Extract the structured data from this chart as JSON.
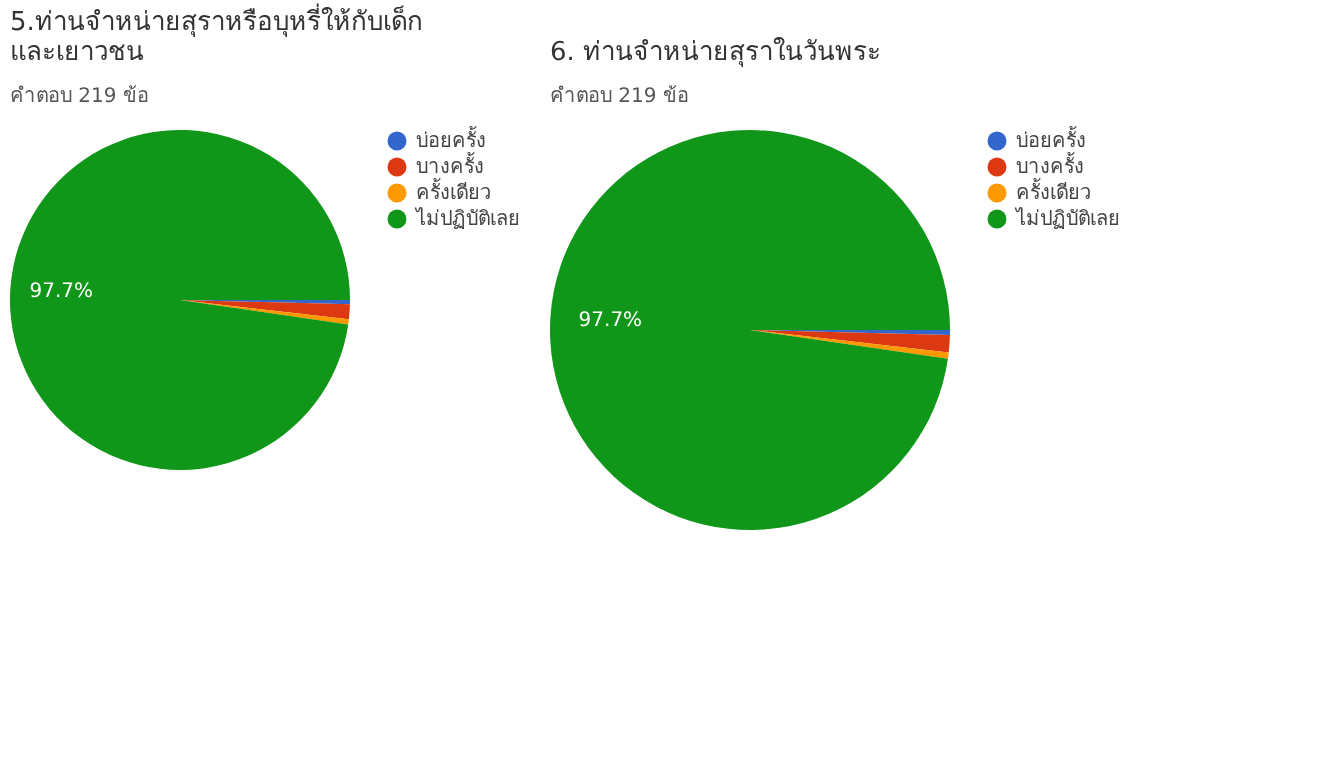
{
  "chart_data": [
    {
      "type": "pie",
      "title": "5.ท่านจำหน่ายสุราหรือบุหรี่ให้กับเด็ก\nและเยาวชน",
      "subtitle": "คำตอบ 219 ข้อ",
      "categories": [
        "บ่อยครั้ง",
        "บางครั้ง",
        "ครั้งเดียว",
        "ไม่ปฏิบัติเลย"
      ],
      "values": [
        0.4,
        1.4,
        0.5,
        97.7
      ],
      "colors": [
        "#3366cc",
        "#dc3912",
        "#ff9900",
        "#109618"
      ],
      "value_labels": [
        null,
        null,
        null,
        "97.7%"
      ],
      "legend": "top right"
    },
    {
      "type": "pie",
      "title": "6. ท่านจำหน่ายสุราในวันพระ",
      "subtitle": "คำตอบ 219 ข้อ",
      "categories": [
        "บ่อยครั้ง",
        "บางครั้ง",
        "ครั้งเดียว",
        "ไม่ปฏิบัติเลย"
      ],
      "values": [
        0.4,
        1.4,
        0.5,
        97.7
      ],
      "colors": [
        "#3366cc",
        "#dc3912",
        "#ff9900",
        "#109618"
      ],
      "value_labels": [
        null,
        null,
        null,
        "97.7%"
      ],
      "legend": "top right"
    }
  ]
}
